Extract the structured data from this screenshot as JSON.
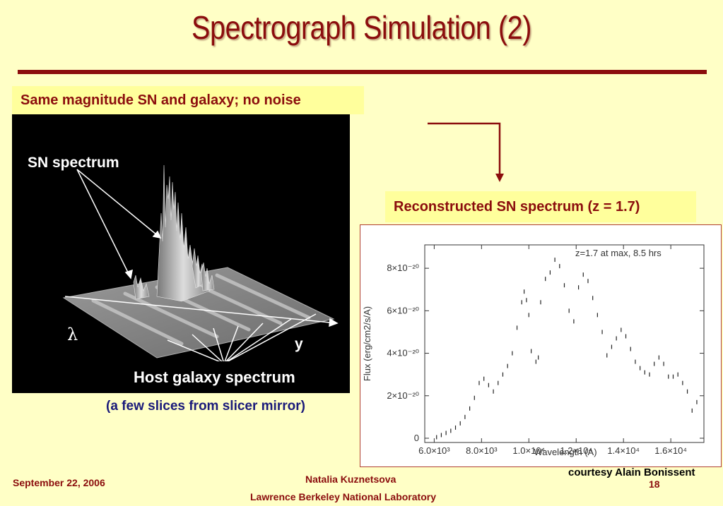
{
  "slide": {
    "title": "Spectrograph Simulation (2)",
    "left_label": "Same magnitude SN and galaxy; no noise",
    "right_label": "Reconstructed SN spectrum (z = 1.7)",
    "sub_caption": "(a few slices from slicer mirror)"
  },
  "simulation": {
    "sn_label": "SN spectrum",
    "host_label": "Host galaxy spectrum",
    "lambda_label": "λ",
    "y_label": "y"
  },
  "footer": {
    "date": "September 22, 2006",
    "author": "Natalia Kuznetsova",
    "lab": "Lawrence Berkeley National Laboratory",
    "courtesy": "courtesy Alain Bonissent",
    "page": "18"
  },
  "colors": {
    "title": "#8b0d0d",
    "background": "#ffffc6",
    "label_box": "#ffff9c"
  },
  "chart_data": {
    "type": "scatter",
    "annotation": "z=1.7 at max, 8.5 hrs",
    "xlabel": "Wavelength (A)",
    "ylabel": "Flux (erg/cm2/s/A)",
    "xlim": [
      5600,
      17400
    ],
    "ylim": [
      -2e-21,
      9.1e-20
    ],
    "x_ticks": [
      6000,
      8000,
      10000,
      12000,
      14000,
      16000
    ],
    "x_tick_labels": [
      "6.0×10³",
      "8.0×10³",
      "1.0×10⁴",
      "1.2×10⁴",
      "1.4×10⁴",
      "1.6×10⁴"
    ],
    "y_ticks": [
      0,
      2e-20,
      4e-20,
      6e-20,
      8e-20
    ],
    "y_tick_labels": [
      "0",
      "2×10⁻²⁰",
      "4×10⁻²⁰",
      "6×10⁻²⁰",
      "8×10⁻²⁰"
    ],
    "x": [
      6100,
      6300,
      6500,
      6700,
      6900,
      7100,
      7300,
      7500,
      7700,
      7900,
      8100,
      8300,
      8500,
      8700,
      8900,
      9100,
      9300,
      9500,
      9700,
      9800,
      9900,
      10000,
      10100,
      10300,
      10400,
      10500,
      10700,
      10900,
      11100,
      11300,
      11500,
      11700,
      11900,
      12100,
      12300,
      12500,
      12700,
      12900,
      13100,
      13300,
      13500,
      13700,
      13900,
      14100,
      14300,
      14500,
      14700,
      14900,
      15100,
      15300,
      15500,
      15700,
      15900,
      16100,
      16300,
      16500,
      16700,
      16900,
      17100
    ],
    "values": [
      5e-22,
      1.5e-21,
      2.5e-21,
      3.5e-21,
      5e-21,
      7e-21,
      1e-20,
      1.4e-20,
      1.9e-20,
      2.6e-20,
      2.8e-20,
      2.5e-20,
      2.2e-20,
      2.6e-20,
      3e-20,
      3.4e-20,
      4e-20,
      5.2e-20,
      6.4e-20,
      6.9e-20,
      6.5e-20,
      5.8e-20,
      4.1e-20,
      3.6e-20,
      3.8e-20,
      6.4e-20,
      7.5e-20,
      7.8e-20,
      8.4e-20,
      8.1e-20,
      7.2e-20,
      6e-20,
      5.5e-20,
      7.1e-20,
      7.7e-20,
      7.4e-20,
      6.6e-20,
      5.8e-20,
      5e-20,
      3.9e-20,
      4.3e-20,
      4.7e-20,
      5.1e-20,
      4.8e-20,
      4.2e-20,
      3.6e-20,
      3.3e-20,
      3.1e-20,
      3e-20,
      3.5e-20,
      3.8e-20,
      3.5e-20,
      2.9e-20,
      2.9e-20,
      3e-20,
      2.6e-20,
      2.2e-20,
      1.3e-20,
      1.7e-20
    ]
  }
}
